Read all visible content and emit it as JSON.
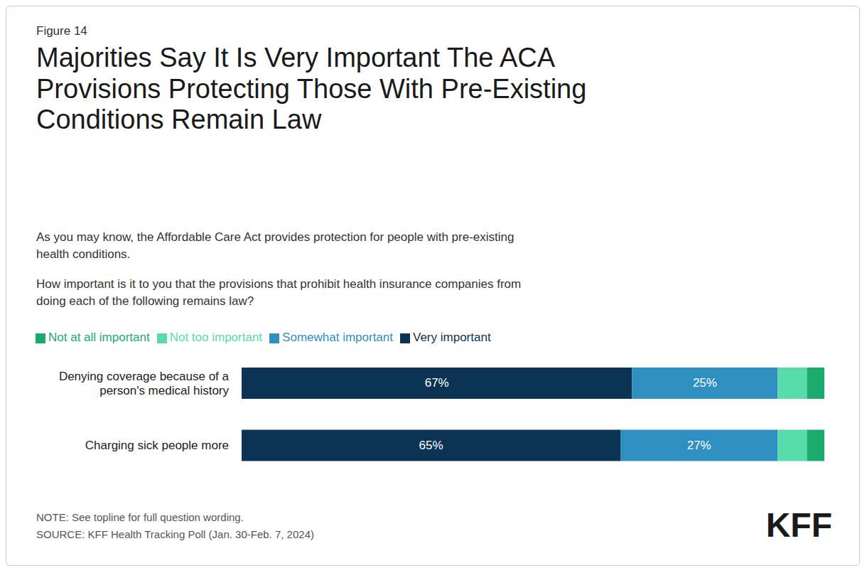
{
  "chart_data": {
    "type": "bar",
    "orientation": "horizontal",
    "stacked": true,
    "title": "Majorities Say It Is Very Important The ACA\nProvisions Protecting Those With Pre-Existing\nConditions Remain Law",
    "subtitle": [
      "As you may know, the Affordable Care Act provides protection for people with pre-existing\nhealth conditions.",
      "How important is it to you that the provisions that prohibit health insurance companies from\ndoing each of the following remains law?"
    ],
    "note": "NOTE: See topline for full question wording.\nSOURCE: KFF Health Tracking Poll (Jan. 30-Feb. 7, 2024)",
    "annotations": [
      "Figure 14",
      "KFF"
    ],
    "categories": [
      "Denying coverage because of a\nperson's medical history",
      "Charging sick people more"
    ],
    "series": [
      {
        "name": "Very important",
        "color": "#0d3354",
        "values": [
          67,
          65
        ],
        "value_labels": [
          "67%",
          "65%"
        ]
      },
      {
        "name": "Somewhat important",
        "color": "#2f8fc0",
        "values": [
          25,
          27
        ],
        "value_labels": [
          "25%",
          "27%"
        ]
      },
      {
        "name": "Not too important",
        "color": "#57dba9",
        "values": [
          5,
          5
        ],
        "value_labels": [
          null,
          null
        ]
      },
      {
        "name": "Not at all important",
        "color": "#1aaa6e",
        "values": [
          3,
          3
        ],
        "value_labels": [
          null,
          null
        ]
      }
    ],
    "xlim": [
      0,
      100
    ],
    "data_labels": true,
    "tick_labels": "y",
    "grid": false,
    "legend": "top left"
  }
}
